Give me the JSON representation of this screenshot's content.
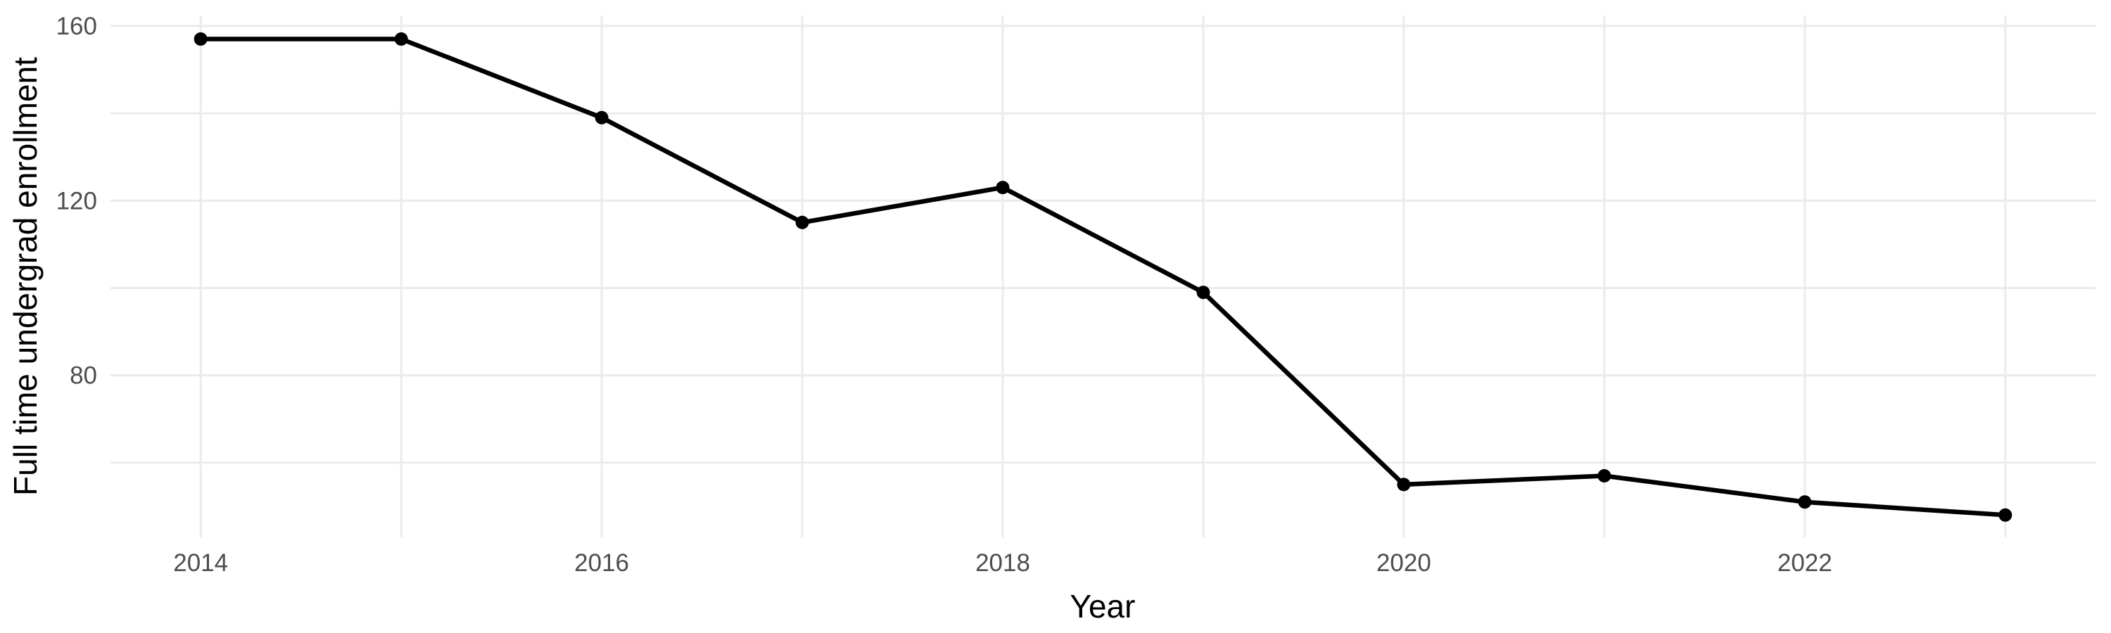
{
  "chart_data": {
    "type": "line",
    "title": "",
    "xlabel": "Year",
    "ylabel": "Full time undergrad enrollment",
    "x": [
      2014,
      2015,
      2016,
      2017,
      2018,
      2019,
      2020,
      2021,
      2022,
      2023
    ],
    "series": [
      {
        "name": "Full time undergrad enrollment",
        "values": [
          157,
          157,
          139,
          115,
          123,
          99,
          55,
          57,
          51,
          48
        ]
      }
    ],
    "x_gridlines": [
      2014,
      2015,
      2016,
      2017,
      2018,
      2019,
      2020,
      2021,
      2022,
      2023
    ],
    "y_gridlines": [
      160,
      140,
      120,
      100,
      80,
      60
    ],
    "x_tick_labels": [
      "2014",
      "2016",
      "2018",
      "2020",
      "2022"
    ],
    "x_tick_positions": [
      2014,
      2016,
      2018,
      2020,
      2022
    ],
    "y_tick_labels": [
      "160",
      "120",
      "80"
    ],
    "y_tick_positions": [
      160,
      120,
      80
    ],
    "xlim": [
      2013.55,
      2023.45
    ],
    "ylim": [
      42.9,
      162.4
    ],
    "grid": "on",
    "legend": "none",
    "marker": "filled-circle",
    "colors": {
      "line": "#000000",
      "point": "#000000",
      "grid": "#EBEBEB",
      "tick_text": "#4D4D4D",
      "axis_title": "#000000",
      "background": "#FFFFFF"
    }
  }
}
